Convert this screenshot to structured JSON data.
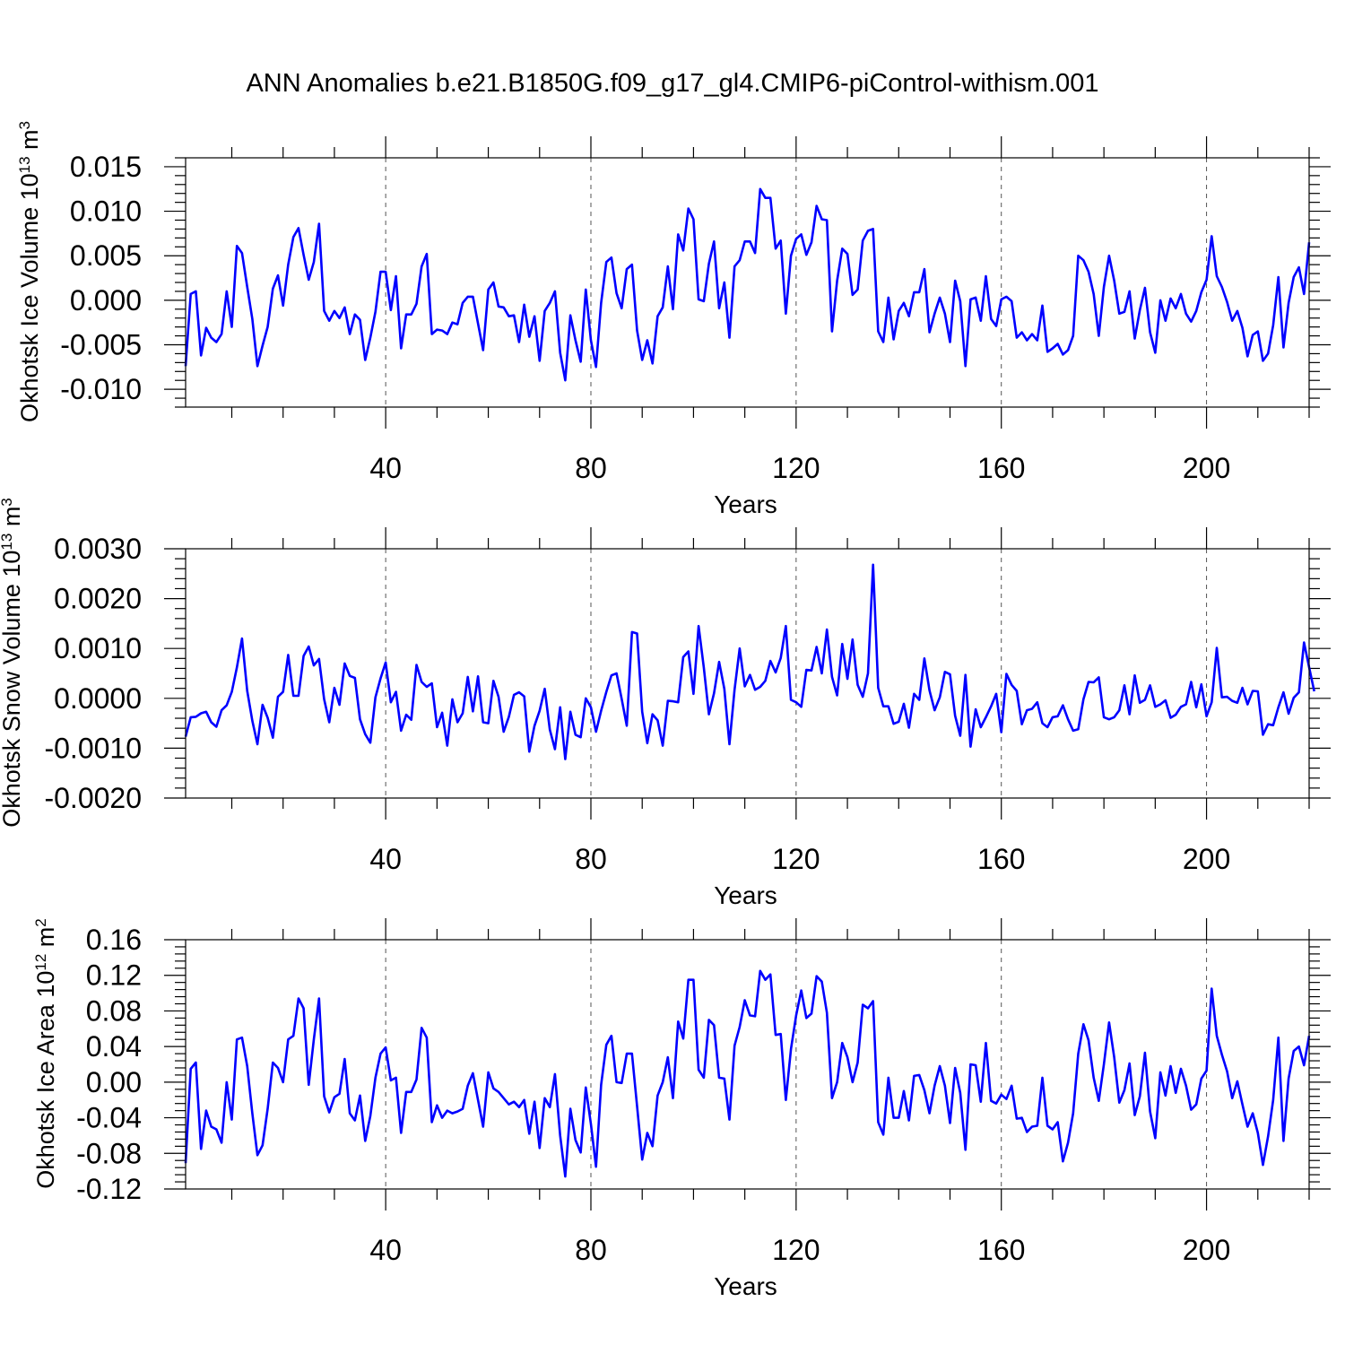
{
  "title": "ANN Anomalies b.e21.B1850G.f09_g17_gl4.CMIP6-piControl-withism.001",
  "colors": {
    "series": "#0000ff",
    "grid": "#555555",
    "frame": "#000000"
  },
  "chart_data": [
    {
      "type": "line",
      "ylabel": {
        "text": "Okhotsk Ice Volume 10",
        "exp": "13",
        "unit": " m",
        "unit_exp": "3"
      },
      "xlabel": "Years",
      "xlim": [
        1,
        220
      ],
      "ylim": [
        -0.012,
        0.016
      ],
      "xticks": [
        40,
        80,
        120,
        160,
        200
      ],
      "xtick_labels": [
        "40",
        "80",
        "120",
        "160",
        "200"
      ],
      "yticks": [
        -0.01,
        -0.005,
        0,
        0.005,
        0.01,
        0.015
      ],
      "ytick_labels": [
        "-0.010",
        "-0.005",
        "0.000",
        "0.005",
        "0.010",
        "0.015"
      ],
      "grid_x": true,
      "series": [
        {
          "values": [
            -0.0074,
            0.0007,
            0.001,
            -0.0062,
            -0.0031,
            -0.0042,
            -0.0047,
            -0.0038,
            0.001,
            -0.003,
            0.0061,
            0.0053,
            0.0015,
            -0.0021,
            -0.0074,
            -0.0051,
            -0.003,
            0.0013,
            0.0028,
            -0.0006,
            0.004,
            0.0071,
            0.0081,
            0.0051,
            0.0023,
            0.0043,
            0.0086,
            -0.0012,
            -0.0023,
            -0.0012,
            -0.002,
            -0.0008,
            -0.0038,
            -0.0016,
            -0.0022,
            -0.0067,
            -0.0042,
            -0.0013,
            0.0032,
            0.0032,
            -0.0011,
            0.0027,
            -0.0054,
            -0.0016,
            -0.0016,
            -0.0004,
            0.0038,
            0.0052,
            -0.0038,
            -0.0033,
            -0.0034,
            -0.0038,
            -0.0025,
            -0.0027,
            -0.0003,
            0.0004,
            0.0004,
            -0.0026,
            -0.0056,
            0.0012,
            0.002,
            -0.0007,
            -0.0008,
            -0.0018,
            -0.0017,
            -0.0047,
            -0.0005,
            -0.0041,
            -0.0018,
            -0.0068,
            -0.0012,
            -0.0003,
            0.001,
            -0.0059,
            -0.009,
            -0.0017,
            -0.0045,
            -0.0069,
            0.0012,
            -0.0045,
            -0.0075,
            -0.0003,
            0.0043,
            0.0048,
            0.0008,
            -0.0009,
            0.0035,
            0.004,
            -0.0034,
            -0.0067,
            -0.0045,
            -0.0071,
            -0.0018,
            -0.0008,
            0.0038,
            -0.001,
            0.0074,
            0.0056,
            0.0103,
            0.0091,
            0.0001,
            -0.0001,
            0.0041,
            0.0066,
            -0.0009,
            0.002,
            -0.0042,
            0.0038,
            0.0045,
            0.0066,
            0.0066,
            0.0053,
            0.0125,
            0.0115,
            0.0115,
            0.0058,
            0.0067,
            -0.0015,
            0.005,
            0.0069,
            0.0074,
            0.0051,
            0.0065,
            0.0106,
            0.0091,
            0.009,
            -0.0035,
            0.0022,
            0.0058,
            0.0052,
            0.0006,
            0.0012,
            0.0067,
            0.0078,
            0.008,
            -0.0035,
            -0.0047,
            0.0003,
            -0.0044,
            -0.0012,
            -0.0003,
            -0.0018,
            0.0009,
            0.0009,
            0.0035,
            -0.0036,
            -0.0015,
            0.0003,
            -0.0015,
            -0.0047,
            0.0022,
            -0.0001,
            -0.0074,
            0.0001,
            0.0003,
            -0.0023,
            0.0027,
            -0.0021,
            -0.0029,
            0.0001,
            0.0004,
            -0.0001,
            -0.0042,
            -0.0036,
            -0.0045,
            -0.0038,
            -0.0045,
            -0.0006,
            -0.0058,
            -0.0054,
            -0.0049,
            -0.0061,
            -0.0056,
            -0.004,
            0.005,
            0.0045,
            0.0032,
            0.0007,
            -0.004,
            0.0015,
            0.005,
            0.0022,
            -0.0015,
            -0.0013,
            0.001,
            -0.0043,
            -0.0011,
            0.0014,
            -0.0036,
            -0.0059,
            0,
            -0.0023,
            0.0002,
            -0.0009,
            0.0007,
            -0.0015,
            -0.0024,
            -0.0012,
            0.0009,
            0.0023,
            0.0072,
            0.0027,
            0.0015,
            -0.0002,
            -0.0023,
            -0.0012,
            -0.0031,
            -0.0063,
            -0.0039,
            -0.0035,
            -0.0068,
            -0.006,
            -0.0028,
            0.0026,
            -0.0053,
            -0.0003,
            0.0026,
            0.0037,
            0.0007,
            0.0065
          ]
        }
      ]
    },
    {
      "type": "line",
      "ylabel": {
        "text": "Okhotsk Snow Volume 10",
        "exp": "13",
        "unit": " m",
        "unit_exp": "3"
      },
      "xlabel": "Years",
      "xlim": [
        1,
        220
      ],
      "ylim": [
        -0.002,
        0.003
      ],
      "xticks": [
        40,
        80,
        120,
        160,
        200
      ],
      "xtick_labels": [
        "40",
        "80",
        "120",
        "160",
        "200"
      ],
      "yticks": [
        -0.002,
        -0.001,
        0,
        0.001,
        0.002,
        0.003
      ],
      "ytick_labels": [
        "-0.0020",
        "-0.0010",
        "0.0000",
        "0.0010",
        "0.0020",
        "0.0030"
      ],
      "grid_x": true,
      "series": [
        {
          "values": [
            -0.00077,
            -0.00038,
            -0.00037,
            -0.0003,
            -0.00027,
            -0.00048,
            -0.00057,
            -0.00024,
            -0.00014,
            0.00013,
            0.00062,
            0.0012,
            0.00015,
            -0.00045,
            -0.00092,
            -0.00013,
            -0.00039,
            -0.00079,
            3e-05,
            0.00013,
            0.00087,
            5e-05,
            5e-05,
            0.00085,
            0.00104,
            0.00066,
            0.00079,
            -2e-05,
            -0.00048,
            0.00021,
            -0.00013,
            0.0007,
            0.00045,
            0.00041,
            -0.00042,
            -0.00072,
            -0.00089,
            2e-05,
            0.0004,
            0.00072,
            -8e-05,
            0.00013,
            -0.00065,
            -0.00033,
            -0.00043,
            0.00067,
            0.00033,
            0.00023,
            0.0003,
            -0.00058,
            -0.00029,
            -0.00095,
            -2e-05,
            -0.00048,
            -0.0003,
            0.00043,
            -0.00026,
            0.00044,
            -0.00048,
            -0.0005,
            0.00035,
            3e-05,
            -0.00067,
            -0.00037,
            7e-05,
            0.00012,
            4e-05,
            -0.00107,
            -0.00055,
            -0.00025,
            0.00019,
            -0.00063,
            -0.00102,
            -0.00018,
            -0.00122,
            -0.00027,
            -0.00073,
            -0.00078,
            0,
            -0.00018,
            -0.00067,
            -0.00025,
            0.00013,
            0.00046,
            0.0005,
            -1e-05,
            -0.00055,
            0.00133,
            0.0013,
            -0.00027,
            -0.0009,
            -0.00032,
            -0.00044,
            -0.00095,
            -5e-05,
            -6e-05,
            -8e-05,
            0.00083,
            0.00094,
            9e-05,
            0.00145,
            0.00062,
            -0.00032,
            0.0001,
            0.00073,
            0.00019,
            -0.00092,
            0.00017,
            0.001,
            0.00024,
            0.00047,
            0.00017,
            0.00023,
            0.00035,
            0.00075,
            0.00052,
            0.00081,
            0.00145,
            -3e-05,
            -8e-05,
            -0.00017,
            0.00057,
            0.00056,
            0.00103,
            0.0005,
            0.00138,
            0.00043,
            6e-05,
            0.00109,
            0.00039,
            0.00118,
            0.00027,
            3e-05,
            0.0005,
            0.00268,
            0.00021,
            -0.00016,
            -0.00016,
            -0.00051,
            -0.00047,
            -0.00011,
            -0.00059,
            9e-05,
            -3e-05,
            0.0008,
            0.00016,
            -0.00024,
            2e-05,
            0.00053,
            0.00048,
            -0.00035,
            -0.00075,
            0.00047,
            -0.00097,
            -0.00022,
            -0.00058,
            -0.00038,
            -0.00016,
            9e-05,
            -0.00068,
            0.00049,
            0.00027,
            0.00015,
            -0.00052,
            -0.00024,
            -0.00021,
            -8e-05,
            -0.0005,
            -0.00058,
            -0.00038,
            -0.00036,
            -0.00014,
            -0.00042,
            -0.00065,
            -0.00062,
            -2e-05,
            0.00033,
            0.00032,
            0.00042,
            -0.00038,
            -0.00042,
            -0.00038,
            -0.00024,
            0.00026,
            -0.00032,
            0.00046,
            -9e-05,
            -3e-05,
            0.00026,
            -0.00017,
            -0.00012,
            -4e-05,
            -0.00039,
            -0.00033,
            -0.00017,
            -0.00012,
            0.00033,
            -0.00018,
            0.00028,
            -0.00036,
            -8e-05,
            0.00101,
            2e-05,
            3e-05,
            -5e-05,
            -9e-05,
            0.00021,
            -0.00012,
            0.00015,
            0.00014,
            -0.00073,
            -0.00052,
            -0.00054,
            -0.00018,
            0.00012,
            -0.00031,
            1e-05,
            0.00012,
            0.00112,
            0.00062,
            0.00014
          ]
        }
      ]
    },
    {
      "type": "line",
      "ylabel": {
        "text": "Okhotsk Ice Area 10",
        "exp": "12",
        "unit": " m",
        "unit_exp": "2"
      },
      "xlabel": "Years",
      "xlim": [
        1,
        220
      ],
      "ylim": [
        -0.12,
        0.16
      ],
      "xticks": [
        40,
        80,
        120,
        160,
        200
      ],
      "xtick_labels": [
        "40",
        "80",
        "120",
        "160",
        "200"
      ],
      "yticks": [
        -0.12,
        -0.08,
        -0.04,
        0,
        0.04,
        0.08,
        0.12,
        0.16
      ],
      "ytick_labels": [
        "-0.12",
        "-0.08",
        "-0.04",
        "0.00",
        "0.04",
        "0.08",
        "0.12",
        "0.16"
      ],
      "grid_x": true,
      "series": [
        {
          "values": [
            -0.091,
            0.015,
            0.022,
            -0.075,
            -0.032,
            -0.05,
            -0.053,
            -0.068,
            0.0,
            -0.042,
            0.048,
            0.05,
            0.018,
            -0.035,
            -0.082,
            -0.071,
            -0.03,
            0.022,
            0.016,
            0.0,
            0.048,
            0.052,
            0.094,
            0.083,
            -0.003,
            0.048,
            0.094,
            -0.016,
            -0.034,
            -0.017,
            -0.013,
            0.026,
            -0.035,
            -0.043,
            -0.015,
            -0.066,
            -0.038,
            0.005,
            0.032,
            0.039,
            0.002,
            0.005,
            -0.057,
            -0.011,
            -0.011,
            0.003,
            0.061,
            0.05,
            -0.045,
            -0.026,
            -0.04,
            -0.032,
            -0.035,
            -0.033,
            -0.03,
            -0.004,
            0.01,
            -0.02,
            -0.05,
            0.011,
            -0.007,
            -0.011,
            -0.018,
            -0.025,
            -0.022,
            -0.028,
            -0.02,
            -0.058,
            -0.022,
            -0.074,
            -0.018,
            -0.028,
            0.009,
            -0.06,
            -0.106,
            -0.03,
            -0.065,
            -0.079,
            -0.006,
            -0.047,
            -0.095,
            -0.003,
            0.042,
            0.052,
            0.0,
            -0.001,
            0.032,
            0.032,
            -0.027,
            -0.087,
            -0.057,
            -0.072,
            -0.015,
            0.0,
            0.028,
            -0.018,
            0.068,
            0.049,
            0.115,
            0.115,
            0.014,
            0.005,
            0.07,
            0.064,
            0.005,
            0.004,
            -0.042,
            0.041,
            0.062,
            0.092,
            0.075,
            0.074,
            0.125,
            0.115,
            0.121,
            0.053,
            0.054,
            -0.02,
            0.037,
            0.075,
            0.103,
            0.072,
            0.077,
            0.119,
            0.113,
            0.078,
            -0.018,
            0.0,
            0.044,
            0.028,
            0.0,
            0.022,
            0.087,
            0.083,
            0.091,
            -0.045,
            -0.059,
            0.005,
            -0.04,
            -0.04,
            -0.01,
            -0.043,
            0.007,
            0.008,
            -0.009,
            -0.035,
            -0.004,
            0.018,
            -0.004,
            -0.046,
            0.016,
            -0.012,
            -0.076,
            0.02,
            0.019,
            -0.022,
            0.044,
            -0.021,
            -0.024,
            -0.014,
            -0.019,
            -0.004,
            -0.041,
            -0.04,
            -0.056,
            -0.05,
            -0.049,
            0.005,
            -0.049,
            -0.053,
            -0.045,
            -0.089,
            -0.068,
            -0.035,
            0.032,
            0.065,
            0.047,
            0.005,
            -0.021,
            0.02,
            0.067,
            0.028,
            -0.023,
            -0.009,
            0.021,
            -0.037,
            -0.016,
            0.033,
            -0.033,
            -0.063,
            0.011,
            -0.015,
            0.018,
            -0.012,
            0.015,
            -0.004,
            -0.031,
            -0.025,
            0.004,
            0.013,
            0.105,
            0.052,
            0.031,
            0.012,
            -0.018,
            0.001,
            -0.025,
            -0.05,
            -0.035,
            -0.057,
            -0.093,
            -0.061,
            -0.02,
            0.05,
            -0.066,
            0.004,
            0.035,
            0.04,
            0.019,
            0.052
          ]
        }
      ]
    }
  ]
}
